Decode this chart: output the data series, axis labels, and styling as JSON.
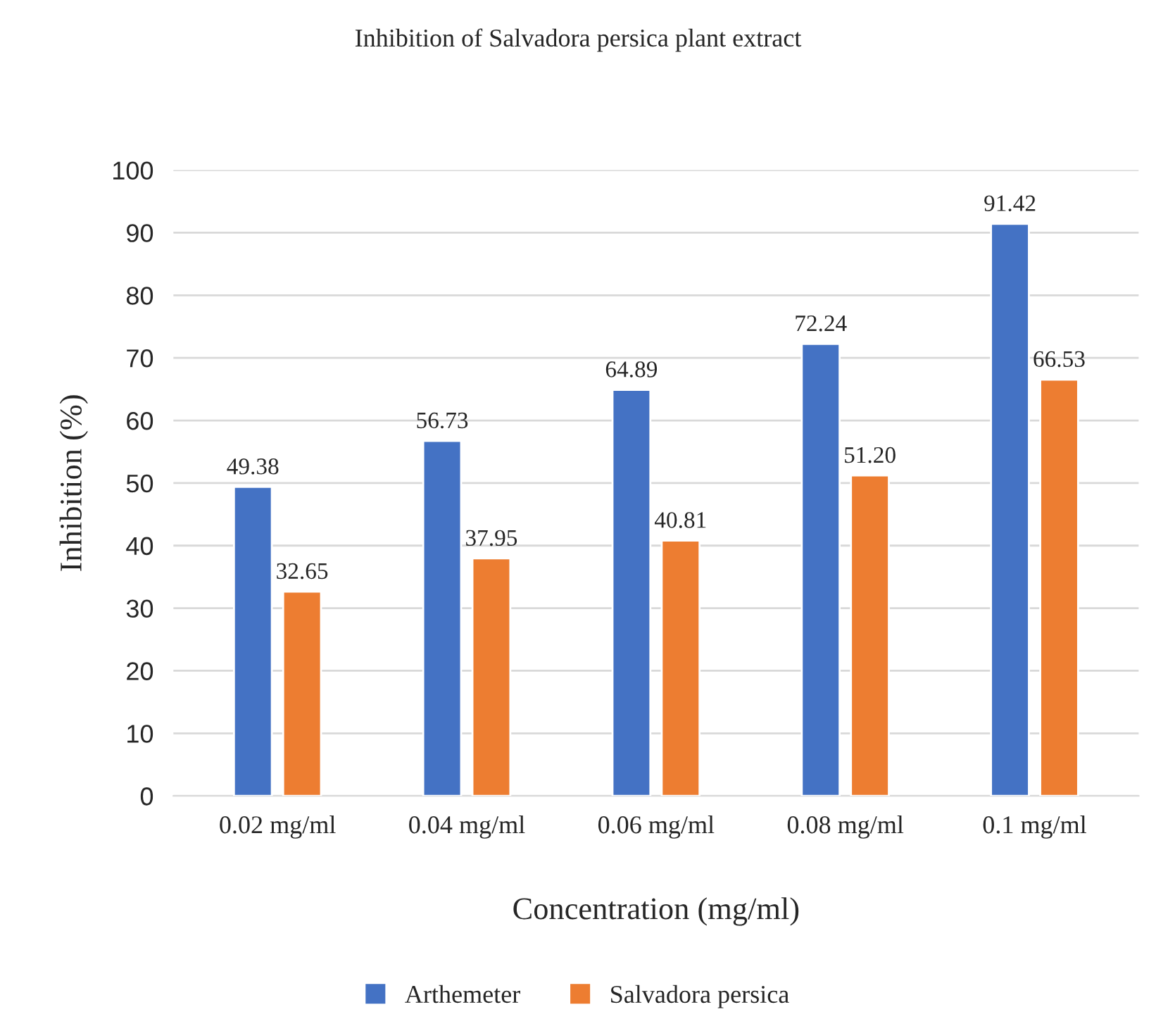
{
  "chart_data": {
    "type": "bar",
    "title": "Inhibition of Salvadora persica plant extract",
    "xlabel": "Concentration (mg/ml)",
    "ylabel": "Inhibition (%)",
    "categories": [
      "0.02 mg/ml",
      "0.04 mg/ml",
      "0.06 mg/ml",
      "0.08 mg/ml",
      "0.1 mg/ml"
    ],
    "series": [
      {
        "name": "Arthemeter",
        "color": "#4472c4",
        "values": [
          49.38,
          56.73,
          64.89,
          72.24,
          91.42
        ],
        "value_labels": [
          "49.38",
          "56.73",
          "64.89",
          "72.24",
          "91.42"
        ]
      },
      {
        "name": "Salvadora persica",
        "color": "#ed7d31",
        "values": [
          32.65,
          37.95,
          40.81,
          51.2,
          66.53
        ],
        "value_labels": [
          "32.65",
          "37.95",
          "40.81",
          "51.20",
          "66.53"
        ]
      }
    ],
    "ylim": [
      0,
      100
    ],
    "yticks": [
      0,
      10,
      20,
      30,
      40,
      50,
      60,
      70,
      80,
      90,
      100
    ],
    "grid": "y",
    "legend": "bottom"
  }
}
